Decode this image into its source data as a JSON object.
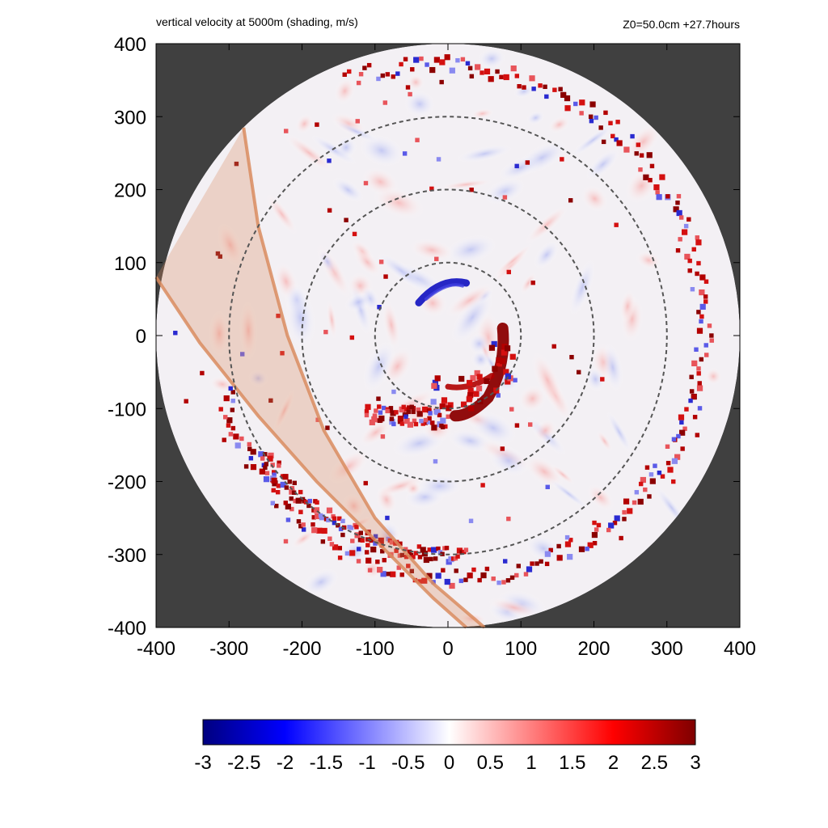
{
  "header": {
    "title": "vertical velocity at 5000m (shading, m/s)",
    "info": "Z0=50.0cm  +27.7hours"
  },
  "chart_data": {
    "type": "heatmap",
    "title": "vertical velocity at 5000m (shading, m/s)",
    "annotation": "Z0=50.0cm  +27.7hours",
    "xlim": [
      -400,
      400
    ],
    "ylim": [
      -400,
      400
    ],
    "xticks": [
      "-400",
      "-300",
      "-200",
      "-100",
      "0",
      "100",
      "200",
      "300",
      "400"
    ],
    "yticks": [
      "400",
      "300",
      "200",
      "100",
      "0",
      "-100",
      "-200",
      "-300",
      "-400"
    ],
    "domain_radius": 400,
    "outside_domain_color": "#404040",
    "dashed_circle_radii": [
      100,
      200,
      300
    ],
    "colorbar": {
      "ticks": [
        "-3",
        "-2.5",
        "-2",
        "-1.5",
        "-1",
        "-0.5",
        "0",
        "0.5",
        "1",
        "1.5",
        "2",
        "2.5",
        "3"
      ],
      "range": [
        -3,
        3
      ],
      "colors": [
        "#00007f",
        "#0000ff",
        "#ffffff",
        "#ff0000",
        "#7f0000"
      ]
    },
    "shaded_band": {
      "color": "#d98c5f",
      "left_edge": [
        [
          -280,
          285
        ],
        [
          -260,
          150
        ],
        [
          -220,
          0
        ],
        [
          -170,
          -130
        ],
        [
          -100,
          -250
        ],
        [
          -20,
          -340
        ],
        [
          50,
          -400
        ]
      ],
      "right_edge": [
        [
          -400,
          80
        ],
        [
          -340,
          -10
        ],
        [
          -260,
          -110
        ],
        [
          -180,
          -200
        ],
        [
          -90,
          -290
        ],
        [
          -20,
          -360
        ],
        [
          25,
          -400
        ]
      ]
    },
    "features": [
      {
        "name": "inner-blue-arc",
        "value": -3
      },
      {
        "name": "inner-red-spiral",
        "value": 3
      },
      {
        "name": "outer-red-rainband",
        "value": 3
      }
    ]
  }
}
